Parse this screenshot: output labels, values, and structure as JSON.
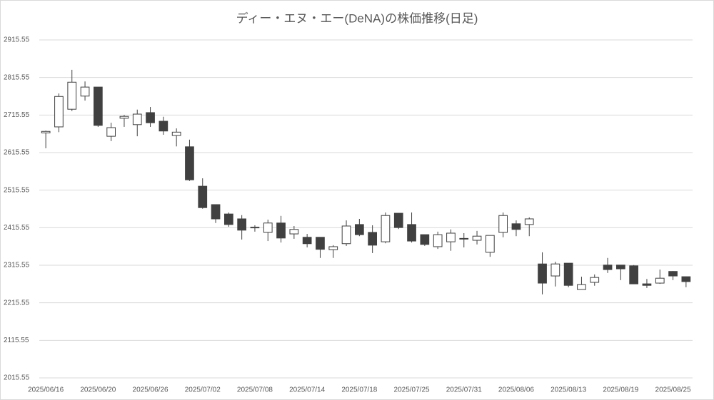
{
  "chart_data": {
    "type": "candlestick",
    "title": "ディー・エヌ・エー(DeNA)の株価推移(日足)",
    "categories": [
      "2025/06/16",
      null,
      null,
      null,
      "2025/06/20",
      null,
      null,
      null,
      "2025/06/26",
      null,
      null,
      null,
      "2025/07/02",
      null,
      null,
      null,
      "2025/07/08",
      null,
      null,
      null,
      "2025/07/14",
      null,
      null,
      null,
      "2025/07/18",
      null,
      null,
      null,
      "2025/07/25",
      null,
      null,
      null,
      "2025/07/31",
      null,
      null,
      null,
      "2025/08/06",
      null,
      null,
      null,
      "2025/08/13",
      null,
      null,
      null,
      "2025/08/19",
      null,
      null,
      null,
      "2025/08/25",
      null
    ],
    "open": [
      2668,
      2684,
      2731,
      2766,
      2790,
      2659,
      2707,
      2690,
      2722,
      2699,
      2661,
      2631,
      2526,
      2477,
      2452,
      2439,
      2415,
      2403,
      2428,
      2399,
      2390,
      2390,
      2357,
      2373,
      2424,
      2403,
      2378,
      2454,
      2424,
      2397,
      2365,
      2378,
      2386,
      2382,
      2350,
      2403,
      2426,
      2424,
      2319,
      2287,
      2321,
      2251,
      2270,
      2316,
      2316,
      2314,
      2266,
      2268,
      2299,
      2285
    ],
    "high": [
      2674,
      2773,
      2836,
      2805,
      2790,
      2695,
      2716,
      2730,
      2737,
      2711,
      2680,
      2650,
      2547,
      2477,
      2456,
      2449,
      2422,
      2437,
      2447,
      2420,
      2399,
      2390,
      2369,
      2435,
      2439,
      2422,
      2456,
      2454,
      2456,
      2397,
      2405,
      2411,
      2401,
      2407,
      2395,
      2456,
      2435,
      2443,
      2350,
      2325,
      2321,
      2285,
      2291,
      2335,
      2316,
      2316,
      2279,
      2304,
      2300,
      2285
    ],
    "low": [
      2627,
      2670,
      2726,
      2754,
      2684,
      2646,
      2684,
      2659,
      2684,
      2663,
      2632,
      2540,
      2466,
      2428,
      2418,
      2384,
      2405,
      2380,
      2376,
      2386,
      2363,
      2335,
      2335,
      2367,
      2393,
      2348,
      2374,
      2412,
      2376,
      2367,
      2359,
      2354,
      2363,
      2371,
      2338,
      2390,
      2393,
      2393,
      2238,
      2259,
      2257,
      2251,
      2261,
      2295,
      2276,
      2266,
      2255,
      2266,
      2276,
      2257
    ],
    "close": [
      2672,
      2765,
      2803,
      2790,
      2688,
      2682,
      2712,
      2718,
      2695,
      2673,
      2670,
      2543,
      2469,
      2439,
      2424,
      2409,
      2417,
      2428,
      2388,
      2411,
      2373,
      2358,
      2365,
      2420,
      2397,
      2369,
      2448,
      2416,
      2380,
      2371,
      2397,
      2401,
      2387,
      2393,
      2395,
      2448,
      2411,
      2439,
      2268,
      2319,
      2262,
      2264,
      2283,
      2304,
      2306,
      2266,
      2262,
      2281,
      2287,
      2272
    ],
    "up_color": "#ffffff",
    "down_color": "#404040",
    "edge_color": "#404040",
    "ylim": [
      2015.55,
      2915.55
    ],
    "yticks": [
      2015.55,
      2115.55,
      2215.55,
      2315.55,
      2415.55,
      2515.55,
      2615.55,
      2715.55,
      2815.55,
      2915.55
    ],
    "grid": true
  }
}
